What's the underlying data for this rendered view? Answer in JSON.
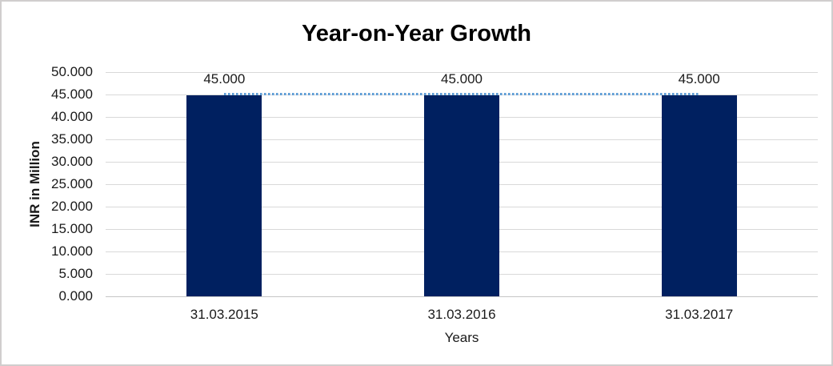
{
  "frame": {
    "border_color": "#d0cece",
    "background_color": "#ffffff"
  },
  "chart_data": {
    "type": "bar",
    "title": "Year-on-Year Growth",
    "categories": [
      "31.03.2015",
      "31.03.2016",
      "31.03.2017"
    ],
    "values": [
      45000,
      45000,
      45000
    ],
    "data_labels": [
      "45.000",
      "45.000",
      "45.000"
    ],
    "xlabel": "Years",
    "ylabel": "INR in Million",
    "ylim": [
      0,
      50000
    ],
    "ytick_step": 5000,
    "ytick_labels": [
      "50.000",
      "45.000",
      "40.000",
      "35.000",
      "30.000",
      "25.000",
      "20.000",
      "15.000",
      "10.000",
      "5.000",
      "0.000"
    ],
    "grid": true,
    "legend": false,
    "bar_color": "#002060",
    "gridline_color": "#d9d9d9",
    "trendline": {
      "style": "dotted",
      "color": "#5b9bd5",
      "value": 45000,
      "from_category_index": 0,
      "to_category_index": 2
    }
  }
}
